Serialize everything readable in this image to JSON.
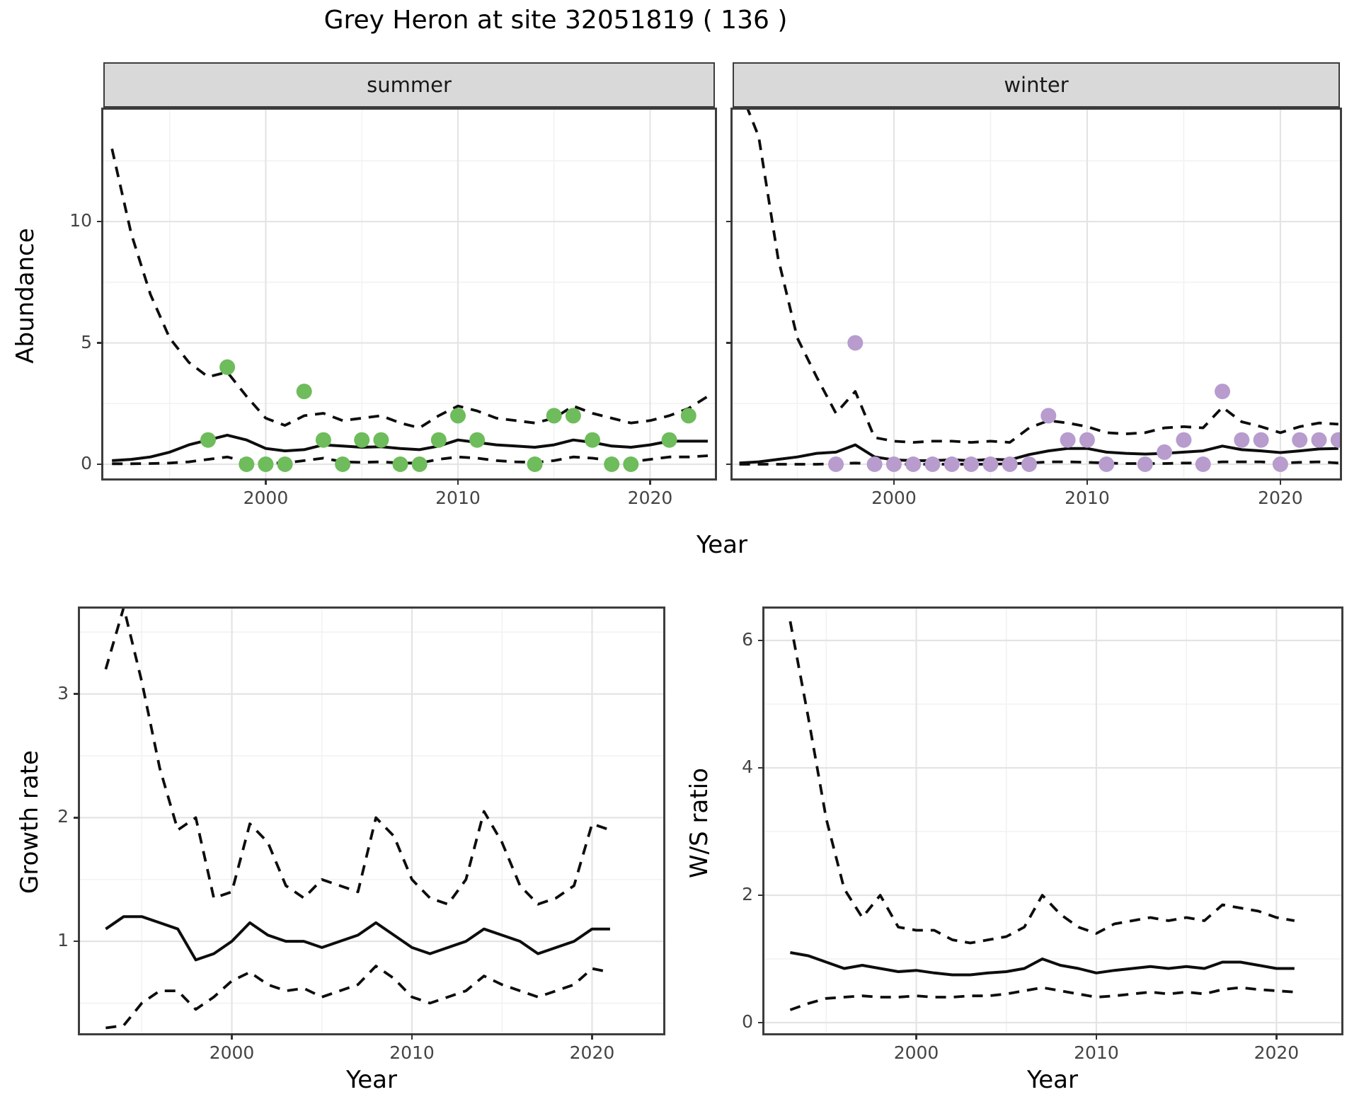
{
  "title": "Grey Heron at site 32051819 ( 136 )",
  "colors": {
    "summer_point": "#6ebc5b",
    "winter_point": "#b79ccd",
    "line": "#0d0d0d",
    "grid_major": "#e4e4e4",
    "grid_minor": "#f2f2f2",
    "strip_bg": "#d9d9d9",
    "tick_label": "#444444"
  },
  "chart_data": [
    {
      "id": "abundance-summer",
      "type": "line",
      "facet_label": "summer",
      "xlabel": "Year",
      "ylabel": "Abundance",
      "xlim": [
        1991.55,
        2023.37
      ],
      "ylim": [
        -0.583,
        14.61
      ],
      "xticks": [
        2000,
        2010,
        2020
      ],
      "xticks_minor": [
        1995,
        2005,
        2015
      ],
      "yticks": [
        0,
        5,
        10
      ],
      "yticks_minor": [
        2.5,
        7.5,
        12.5
      ],
      "grid": true,
      "legend": "none",
      "series": [
        {
          "name": "ci_upper",
          "style": "dashed",
          "x": [
            1992,
            1993,
            1994,
            1995,
            1996,
            1997,
            1998,
            1999,
            2000,
            2001,
            2002,
            2003,
            2004,
            2005,
            2006,
            2007,
            2008,
            2009,
            2010,
            2011,
            2012,
            2013,
            2014,
            2015,
            2016,
            2017,
            2018,
            2019,
            2020,
            2021,
            2022,
            2023
          ],
          "y": [
            13.0,
            9.5,
            7.0,
            5.2,
            4.2,
            3.6,
            3.8,
            2.8,
            1.9,
            1.6,
            2.0,
            2.1,
            1.8,
            1.9,
            2.0,
            1.7,
            1.5,
            2.0,
            2.4,
            2.2,
            1.9,
            1.8,
            1.7,
            1.9,
            2.4,
            2.1,
            1.9,
            1.7,
            1.8,
            2.0,
            2.3,
            2.8
          ]
        },
        {
          "name": "ci_lower",
          "style": "dashed",
          "x": [
            1992,
            1993,
            1994,
            1995,
            1996,
            1997,
            1998,
            1999,
            2000,
            2001,
            2002,
            2003,
            2004,
            2005,
            2006,
            2007,
            2008,
            2009,
            2010,
            2011,
            2012,
            2013,
            2014,
            2015,
            2016,
            2017,
            2018,
            2019,
            2020,
            2021,
            2022,
            2023
          ],
          "y": [
            0.02,
            0.02,
            0.03,
            0.05,
            0.1,
            0.2,
            0.3,
            0.1,
            0.05,
            0.05,
            0.15,
            0.25,
            0.1,
            0.08,
            0.1,
            0.05,
            0.05,
            0.2,
            0.3,
            0.25,
            0.15,
            0.1,
            0.08,
            0.15,
            0.3,
            0.25,
            0.15,
            0.1,
            0.2,
            0.3,
            0.3,
            0.35
          ]
        },
        {
          "name": "median",
          "style": "solid",
          "x": [
            1992,
            1993,
            1994,
            1995,
            1996,
            1997,
            1998,
            1999,
            2000,
            2001,
            2002,
            2003,
            2004,
            2005,
            2006,
            2007,
            2008,
            2009,
            2010,
            2011,
            2012,
            2013,
            2014,
            2015,
            2016,
            2017,
            2018,
            2019,
            2020,
            2021,
            2022,
            2023
          ],
          "y": [
            0.15,
            0.2,
            0.3,
            0.5,
            0.8,
            1.0,
            1.2,
            1.0,
            0.65,
            0.55,
            0.6,
            0.8,
            0.75,
            0.7,
            0.72,
            0.65,
            0.6,
            0.75,
            1.0,
            0.9,
            0.8,
            0.75,
            0.7,
            0.8,
            1.0,
            0.9,
            0.75,
            0.7,
            0.8,
            0.95,
            0.95,
            0.95
          ]
        }
      ],
      "points": {
        "color_key": "summer_point",
        "x": [
          1997,
          1998,
          1999,
          2000,
          2001,
          2002,
          2003,
          2004,
          2005,
          2006,
          2007,
          2008,
          2009,
          2010,
          2011,
          2014,
          2015,
          2016,
          2017,
          2018,
          2019,
          2021,
          2022
        ],
        "y": [
          1,
          4,
          0,
          0,
          0,
          3,
          1,
          0,
          1,
          1,
          0,
          0,
          1,
          2,
          1,
          0,
          2,
          2,
          1,
          0,
          0,
          1,
          2
        ]
      }
    },
    {
      "id": "abundance-winter",
      "type": "line",
      "facet_label": "winter",
      "xlabel": "Year",
      "ylabel": "Abundance",
      "xlim": [
        1991.65,
        2023.08
      ],
      "ylim": [
        -0.583,
        14.61
      ],
      "xticks": [
        2000,
        2010,
        2020
      ],
      "xticks_minor": [
        1995,
        2005,
        2015
      ],
      "yticks": [
        0,
        5,
        10
      ],
      "yticks_minor": [
        2.5,
        7.5,
        12.5
      ],
      "grid": true,
      "legend": "none",
      "series": [
        {
          "name": "ci_upper",
          "style": "dashed",
          "x": [
            1992,
            1993,
            1994,
            1995,
            1996,
            1997,
            1998,
            1999,
            2000,
            2001,
            2002,
            2003,
            2004,
            2005,
            2006,
            2007,
            2008,
            2009,
            2010,
            2011,
            2012,
            2013,
            2014,
            2015,
            2016,
            2017,
            2018,
            2019,
            2020,
            2021,
            2022,
            2023
          ],
          "y": [
            15.5,
            13.5,
            8.5,
            5.2,
            3.6,
            2.1,
            3.0,
            1.1,
            0.95,
            0.9,
            0.95,
            0.95,
            0.9,
            0.95,
            0.9,
            1.5,
            1.8,
            1.7,
            1.55,
            1.3,
            1.25,
            1.3,
            1.5,
            1.55,
            1.5,
            2.35,
            1.75,
            1.55,
            1.3,
            1.55,
            1.7,
            1.65
          ]
        },
        {
          "name": "ci_lower",
          "style": "dashed",
          "x": [
            1992,
            1993,
            1994,
            1995,
            1996,
            1997,
            1998,
            1999,
            2000,
            2001,
            2002,
            2003,
            2004,
            2005,
            2006,
            2007,
            2008,
            2009,
            2010,
            2011,
            2012,
            2013,
            2014,
            2015,
            2016,
            2017,
            2018,
            2019,
            2020,
            2021,
            2022,
            2023
          ],
          "y": [
            0.0,
            0.0,
            0.0,
            0.0,
            0.0,
            0.02,
            0.05,
            0.02,
            0.0,
            0.0,
            0.0,
            0.0,
            0.0,
            0.0,
            0.02,
            0.05,
            0.1,
            0.1,
            0.08,
            0.05,
            0.03,
            0.03,
            0.03,
            0.05,
            0.05,
            0.1,
            0.1,
            0.1,
            0.05,
            0.08,
            0.1,
            0.05
          ]
        },
        {
          "name": "median",
          "style": "solid",
          "x": [
            1992,
            1993,
            1994,
            1995,
            1996,
            1997,
            1998,
            1999,
            2000,
            2001,
            2002,
            2003,
            2004,
            2005,
            2006,
            2007,
            2008,
            2009,
            2010,
            2011,
            2012,
            2013,
            2014,
            2015,
            2016,
            2017,
            2018,
            2019,
            2020,
            2021,
            2022,
            2023
          ],
          "y": [
            0.05,
            0.1,
            0.2,
            0.3,
            0.45,
            0.5,
            0.8,
            0.3,
            0.18,
            0.15,
            0.15,
            0.18,
            0.15,
            0.2,
            0.18,
            0.4,
            0.55,
            0.65,
            0.65,
            0.5,
            0.45,
            0.42,
            0.45,
            0.5,
            0.55,
            0.75,
            0.6,
            0.55,
            0.48,
            0.55,
            0.63,
            0.65
          ]
        }
      ],
      "points": {
        "color_key": "winter_point",
        "x": [
          1997,
          1998,
          1999,
          2000,
          2001,
          2002,
          2003,
          2004,
          2005,
          2006,
          2007,
          2008,
          2009,
          2010,
          2011,
          2013,
          2014,
          2015,
          2016,
          2017,
          2018,
          2019,
          2020,
          2021,
          2022,
          2023
        ],
        "y": [
          0,
          5,
          0,
          0,
          0,
          0,
          0,
          0,
          0,
          0,
          0,
          2,
          1,
          1,
          0,
          0,
          0.5,
          1,
          0,
          3,
          1,
          1,
          0,
          1,
          1,
          1
        ]
      }
    },
    {
      "id": "growth-rate",
      "type": "line",
      "facet_label": "",
      "xlabel": "Year",
      "ylabel": "Growth rate",
      "xlim": [
        1991.57,
        2023.95
      ],
      "ylim": [
        0.257,
        3.69
      ],
      "xticks": [
        2000,
        2010,
        2020
      ],
      "xticks_minor": [
        1995,
        2005,
        2015
      ],
      "yticks": [
        1,
        2,
        3
      ],
      "yticks_minor": [
        0.5,
        1.5,
        2.5,
        3.5
      ],
      "grid": true,
      "legend": "none",
      "series": [
        {
          "name": "ci_upper",
          "style": "dashed",
          "x": [
            1993,
            1994,
            1995,
            1996,
            1997,
            1998,
            1999,
            2000,
            2001,
            2002,
            2003,
            2004,
            2005,
            2006,
            2007,
            2008,
            2009,
            2010,
            2011,
            2012,
            2013,
            2014,
            2015,
            2016,
            2017,
            2018,
            2019,
            2020,
            2021
          ],
          "y": [
            3.2,
            3.7,
            3.1,
            2.4,
            1.9,
            2.0,
            1.35,
            1.4,
            1.95,
            1.8,
            1.45,
            1.35,
            1.5,
            1.45,
            1.4,
            2.0,
            1.85,
            1.5,
            1.35,
            1.3,
            1.5,
            2.05,
            1.8,
            1.45,
            1.3,
            1.35,
            1.45,
            1.95,
            1.9
          ]
        },
        {
          "name": "ci_lower",
          "style": "dashed",
          "x": [
            1993,
            1994,
            1995,
            1996,
            1997,
            1998,
            1999,
            2000,
            2001,
            2002,
            2003,
            2004,
            2005,
            2006,
            2007,
            2008,
            2009,
            2010,
            2011,
            2012,
            2013,
            2014,
            2015,
            2016,
            2017,
            2018,
            2019,
            2020,
            2021
          ],
          "y": [
            0.3,
            0.32,
            0.5,
            0.6,
            0.6,
            0.45,
            0.55,
            0.68,
            0.75,
            0.65,
            0.6,
            0.62,
            0.55,
            0.6,
            0.65,
            0.8,
            0.7,
            0.55,
            0.5,
            0.55,
            0.6,
            0.72,
            0.65,
            0.6,
            0.55,
            0.6,
            0.65,
            0.78,
            0.75
          ]
        },
        {
          "name": "median",
          "style": "solid",
          "x": [
            1993,
            1994,
            1995,
            1996,
            1997,
            1998,
            1999,
            2000,
            2001,
            2002,
            2003,
            2004,
            2005,
            2006,
            2007,
            2008,
            2009,
            2010,
            2011,
            2012,
            2013,
            2014,
            2015,
            2016,
            2017,
            2018,
            2019,
            2020,
            2021
          ],
          "y": [
            1.1,
            1.2,
            1.2,
            1.15,
            1.1,
            0.85,
            0.9,
            1.0,
            1.15,
            1.05,
            1.0,
            1.0,
            0.95,
            1.0,
            1.05,
            1.15,
            1.05,
            0.95,
            0.9,
            0.95,
            1.0,
            1.1,
            1.05,
            1.0,
            0.9,
            0.95,
            1.0,
            1.1,
            1.1
          ]
        }
      ],
      "points": null
    },
    {
      "id": "ws-ratio",
      "type": "line",
      "facet_label": "",
      "xlabel": "Year",
      "ylabel": "W/S ratio",
      "xlim": [
        1991.57,
        2023.6
      ],
      "ylim": [
        -0.167,
        6.5
      ],
      "xticks": [
        2000,
        2010,
        2020
      ],
      "xticks_minor": [
        1995,
        2005,
        2015
      ],
      "yticks": [
        0,
        2,
        4,
        6
      ],
      "yticks_minor": [
        1,
        3,
        5
      ],
      "grid": true,
      "legend": "none",
      "series": [
        {
          "name": "ci_upper",
          "style": "dashed",
          "x": [
            1993,
            1994,
            1995,
            1996,
            1997,
            1998,
            1999,
            2000,
            2001,
            2002,
            2003,
            2004,
            2005,
            2006,
            2007,
            2008,
            2009,
            2010,
            2011,
            2012,
            2013,
            2014,
            2015,
            2016,
            2017,
            2018,
            2019,
            2020,
            2021
          ],
          "y": [
            6.3,
            4.8,
            3.2,
            2.1,
            1.65,
            2.0,
            1.5,
            1.45,
            1.45,
            1.3,
            1.25,
            1.3,
            1.35,
            1.5,
            2.0,
            1.7,
            1.5,
            1.4,
            1.55,
            1.6,
            1.65,
            1.6,
            1.65,
            1.6,
            1.85,
            1.8,
            1.75,
            1.65,
            1.6
          ]
        },
        {
          "name": "ci_lower",
          "style": "dashed",
          "x": [
            1993,
            1994,
            1995,
            1996,
            1997,
            1998,
            1999,
            2000,
            2001,
            2002,
            2003,
            2004,
            2005,
            2006,
            2007,
            2008,
            2009,
            2010,
            2011,
            2012,
            2013,
            2014,
            2015,
            2016,
            2017,
            2018,
            2019,
            2020,
            2021
          ],
          "y": [
            0.2,
            0.3,
            0.38,
            0.4,
            0.42,
            0.4,
            0.4,
            0.42,
            0.4,
            0.4,
            0.42,
            0.42,
            0.45,
            0.5,
            0.55,
            0.5,
            0.45,
            0.4,
            0.42,
            0.45,
            0.48,
            0.45,
            0.48,
            0.45,
            0.52,
            0.55,
            0.52,
            0.5,
            0.48
          ]
        },
        {
          "name": "median",
          "style": "solid",
          "x": [
            1993,
            1994,
            1995,
            1996,
            1997,
            1998,
            1999,
            2000,
            2001,
            2002,
            2003,
            2004,
            2005,
            2006,
            2007,
            2008,
            2009,
            2010,
            2011,
            2012,
            2013,
            2014,
            2015,
            2016,
            2017,
            2018,
            2019,
            2020,
            2021
          ],
          "y": [
            1.1,
            1.05,
            0.95,
            0.85,
            0.9,
            0.85,
            0.8,
            0.82,
            0.78,
            0.75,
            0.75,
            0.78,
            0.8,
            0.85,
            1.0,
            0.9,
            0.85,
            0.78,
            0.82,
            0.85,
            0.88,
            0.85,
            0.88,
            0.85,
            0.95,
            0.95,
            0.9,
            0.85,
            0.85
          ]
        }
      ],
      "points": null
    }
  ]
}
